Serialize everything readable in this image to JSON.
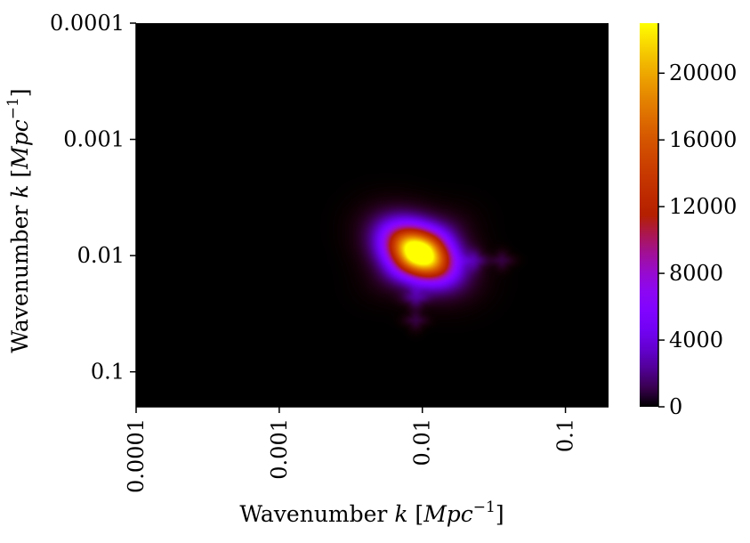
{
  "chart_data": {
    "type": "heatmap",
    "title": "",
    "xlabel": {
      "text": "Wavenumber ",
      "var": "k",
      "unit_open": " [",
      "unit_var": "Mpc",
      "unit_exp": "−1",
      "unit_close": "]"
    },
    "ylabel": {
      "text": "Wavenumber ",
      "var": "k",
      "unit_open": " [",
      "unit_var": "Mpc",
      "unit_exp": "−1",
      "unit_close": "]"
    },
    "x_scale": "log",
    "y_scale": "log",
    "y_inverted": true,
    "xlim": [
      0.0001,
      0.2
    ],
    "ylim": [
      0.0001,
      0.2
    ],
    "x_ticks": [
      {
        "value": 0.0001,
        "label": "0.0001"
      },
      {
        "value": 0.001,
        "label": "0.001"
      },
      {
        "value": 0.01,
        "label": "0.01"
      },
      {
        "value": 0.1,
        "label": "0.1"
      }
    ],
    "y_ticks": [
      {
        "value": 0.0001,
        "label": "0.0001"
      },
      {
        "value": 0.001,
        "label": "0.001"
      },
      {
        "value": 0.01,
        "label": "0.01"
      },
      {
        "value": 0.1,
        "label": "0.1"
      }
    ],
    "colormap": "gnuplot",
    "colorbar": {
      "vmin": 0,
      "vmax": 23000,
      "ticks": [
        {
          "value": 0,
          "label": "0"
        },
        {
          "value": 4000,
          "label": "4000"
        },
        {
          "value": 8000,
          "label": "8000"
        },
        {
          "value": 12000,
          "label": "12000"
        },
        {
          "value": 16000,
          "label": "16000"
        },
        {
          "value": 20000,
          "label": "20000"
        }
      ]
    },
    "peak": {
      "kx": 0.0095,
      "ky": 0.0095,
      "value": 23000
    },
    "features": [
      {
        "kx": 0.0095,
        "ky": 0.0095,
        "width_dex": 0.16,
        "amplitude": 23000,
        "kind": "main"
      },
      {
        "kx": 0.0095,
        "ky": 0.0095,
        "width_dex": 0.32,
        "amplitude": 5200,
        "kind": "halo"
      },
      {
        "kx": 0.023,
        "ky": 0.011,
        "width_dex": 0.06,
        "amplitude": 1800,
        "kind": "side"
      },
      {
        "kx": 0.036,
        "ky": 0.011,
        "width_dex": 0.05,
        "amplitude": 900,
        "kind": "side"
      },
      {
        "kx": 0.009,
        "ky": 0.023,
        "width_dex": 0.06,
        "amplitude": 1800,
        "kind": "side"
      },
      {
        "kx": 0.009,
        "ky": 0.036,
        "width_dex": 0.05,
        "amplitude": 900,
        "kind": "side"
      }
    ]
  }
}
